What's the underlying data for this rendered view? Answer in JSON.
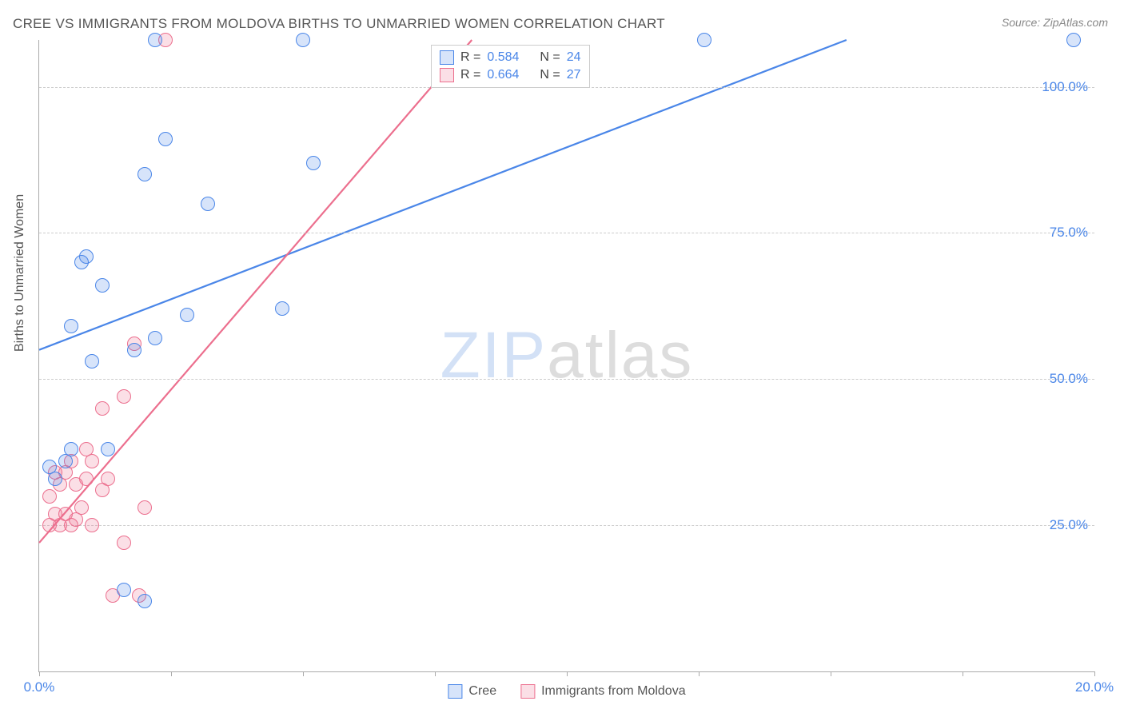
{
  "title": "CREE VS IMMIGRANTS FROM MOLDOVA BIRTHS TO UNMARRIED WOMEN CORRELATION CHART",
  "source": "Source: ZipAtlas.com",
  "ylabel": "Births to Unmarried Women",
  "watermark_zip": "ZIP",
  "watermark_atlas": "atlas",
  "chart": {
    "type": "scatter",
    "xlim": [
      0,
      20
    ],
    "ylim": [
      0,
      108
    ],
    "x_ticks": [
      0,
      2.5,
      5,
      7.5,
      10,
      12.5,
      15,
      17.5,
      20
    ],
    "x_tick_labels": {
      "0": "0.0%",
      "20": "20.0%"
    },
    "y_gridlines": [
      25,
      50,
      75,
      100
    ],
    "y_tick_labels": {
      "25": "25.0%",
      "50": "50.0%",
      "75": "75.0%",
      "100": "100.0%"
    },
    "background_color": "#ffffff",
    "grid_color": "#cccccc",
    "axis_color": "#aaaaaa",
    "tick_label_color": "#4a86e8",
    "marker_radius": 9,
    "marker_border_width": 1.5,
    "marker_fill_opacity": 0.22,
    "line_width": 2.2
  },
  "series": {
    "cree": {
      "label": "Cree",
      "color": "#4a86e8",
      "fill": "rgba(74,134,232,0.22)",
      "R": "0.584",
      "N": "24",
      "trend": {
        "x1": 0,
        "y1": 55,
        "x2": 15.3,
        "y2": 108
      },
      "points": [
        [
          0.2,
          35
        ],
        [
          0.3,
          33
        ],
        [
          0.5,
          36
        ],
        [
          0.6,
          38
        ],
        [
          0.6,
          59
        ],
        [
          0.8,
          70
        ],
        [
          0.9,
          71
        ],
        [
          1.0,
          53
        ],
        [
          1.2,
          66
        ],
        [
          1.3,
          38
        ],
        [
          1.6,
          14
        ],
        [
          2.0,
          12
        ],
        [
          1.8,
          55
        ],
        [
          2.2,
          57
        ],
        [
          2.2,
          108
        ],
        [
          2.4,
          91
        ],
        [
          2.0,
          85
        ],
        [
          2.8,
          61
        ],
        [
          3.2,
          80
        ],
        [
          4.6,
          62
        ],
        [
          5.0,
          108
        ],
        [
          5.2,
          87
        ],
        [
          12.6,
          108
        ],
        [
          19.6,
          108
        ]
      ]
    },
    "moldova": {
      "label": "Immigrants from Moldova",
      "color": "#ec6f8e",
      "fill": "rgba(236,111,142,0.22)",
      "R": "0.664",
      "N": "27",
      "trend": {
        "x1": 0,
        "y1": 22,
        "x2": 8.2,
        "y2": 108
      },
      "points": [
        [
          0.2,
          25
        ],
        [
          0.2,
          30
        ],
        [
          0.3,
          27
        ],
        [
          0.3,
          34
        ],
        [
          0.4,
          25
        ],
        [
          0.4,
          32
        ],
        [
          0.5,
          27
        ],
        [
          0.5,
          34
        ],
        [
          0.6,
          25
        ],
        [
          0.6,
          36
        ],
        [
          0.7,
          26
        ],
        [
          0.7,
          32
        ],
        [
          0.8,
          28
        ],
        [
          0.9,
          33
        ],
        [
          0.9,
          38
        ],
        [
          1.0,
          25
        ],
        [
          1.0,
          36
        ],
        [
          1.2,
          31
        ],
        [
          1.2,
          45
        ],
        [
          1.3,
          33
        ],
        [
          1.4,
          13
        ],
        [
          1.6,
          22
        ],
        [
          1.6,
          47
        ],
        [
          1.8,
          56
        ],
        [
          1.9,
          13
        ],
        [
          2.0,
          28
        ],
        [
          2.4,
          108
        ]
      ]
    }
  },
  "legend_top": {
    "R_label": "R =",
    "N_label": "N ="
  }
}
